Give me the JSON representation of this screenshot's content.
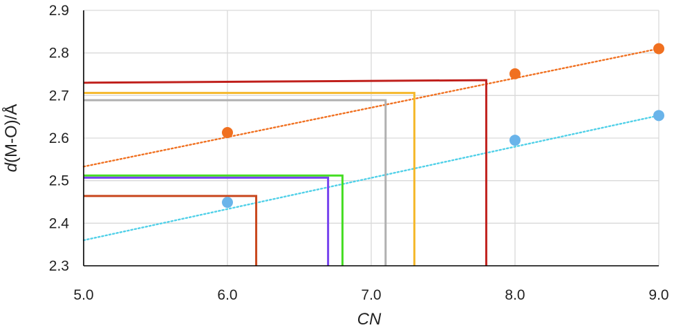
{
  "chart_data": {
    "type": "scatter",
    "xlabel": {
      "italic": "CN",
      "rest": ""
    },
    "ylabel": {
      "italic": "d",
      "rest": "(M-O)/Å"
    },
    "xlim": [
      5.0,
      9.0
    ],
    "ylim": [
      2.3,
      2.9
    ],
    "x_ticks": [
      "5.0",
      "6.0",
      "7.0",
      "8.0",
      "9.0"
    ],
    "y_ticks": [
      "2.3",
      "2.4",
      "2.5",
      "2.6",
      "2.7",
      "2.8",
      "2.9"
    ],
    "grid": true,
    "colors": {
      "grid": "#d9d9d9",
      "axis": "#000000",
      "orange_series": "#f07020",
      "blue_series": "#6ab4ea",
      "orange_trend": "#f07020",
      "blue_trend": "#50d0e8"
    },
    "series": [
      {
        "color": "orange",
        "x": [
          6.0,
          8.0,
          9.0
        ],
        "y": [
          2.613,
          2.751,
          2.81
        ]
      },
      {
        "color": "blue",
        "x": [
          6.0,
          8.0,
          9.0
        ],
        "y": [
          2.449,
          2.595,
          2.653
        ]
      }
    ],
    "trendlines": [
      {
        "color": "orange",
        "style": "dotted",
        "x": [
          5.0,
          9.0
        ],
        "y": [
          2.533,
          2.81
        ]
      },
      {
        "color": "blue",
        "style": "dotted",
        "x": [
          5.0,
          9.0
        ],
        "y": [
          2.36,
          2.653
        ]
      }
    ],
    "reference_lines": [
      {
        "color": "#c0201c",
        "x": 7.8,
        "y": 2.73,
        "y_end": 2.736
      },
      {
        "color": "#f5b82a",
        "x": 7.3,
        "y": 2.706
      },
      {
        "color": "#b0b0b0",
        "x": 7.1,
        "y": 2.689
      },
      {
        "color": "#44dd22",
        "x": 6.8,
        "y": 2.512
      },
      {
        "color": "#7744ee",
        "x": 6.7,
        "y": 2.507
      },
      {
        "color": "#c8461c",
        "x": 6.2,
        "y": 2.464
      }
    ]
  }
}
